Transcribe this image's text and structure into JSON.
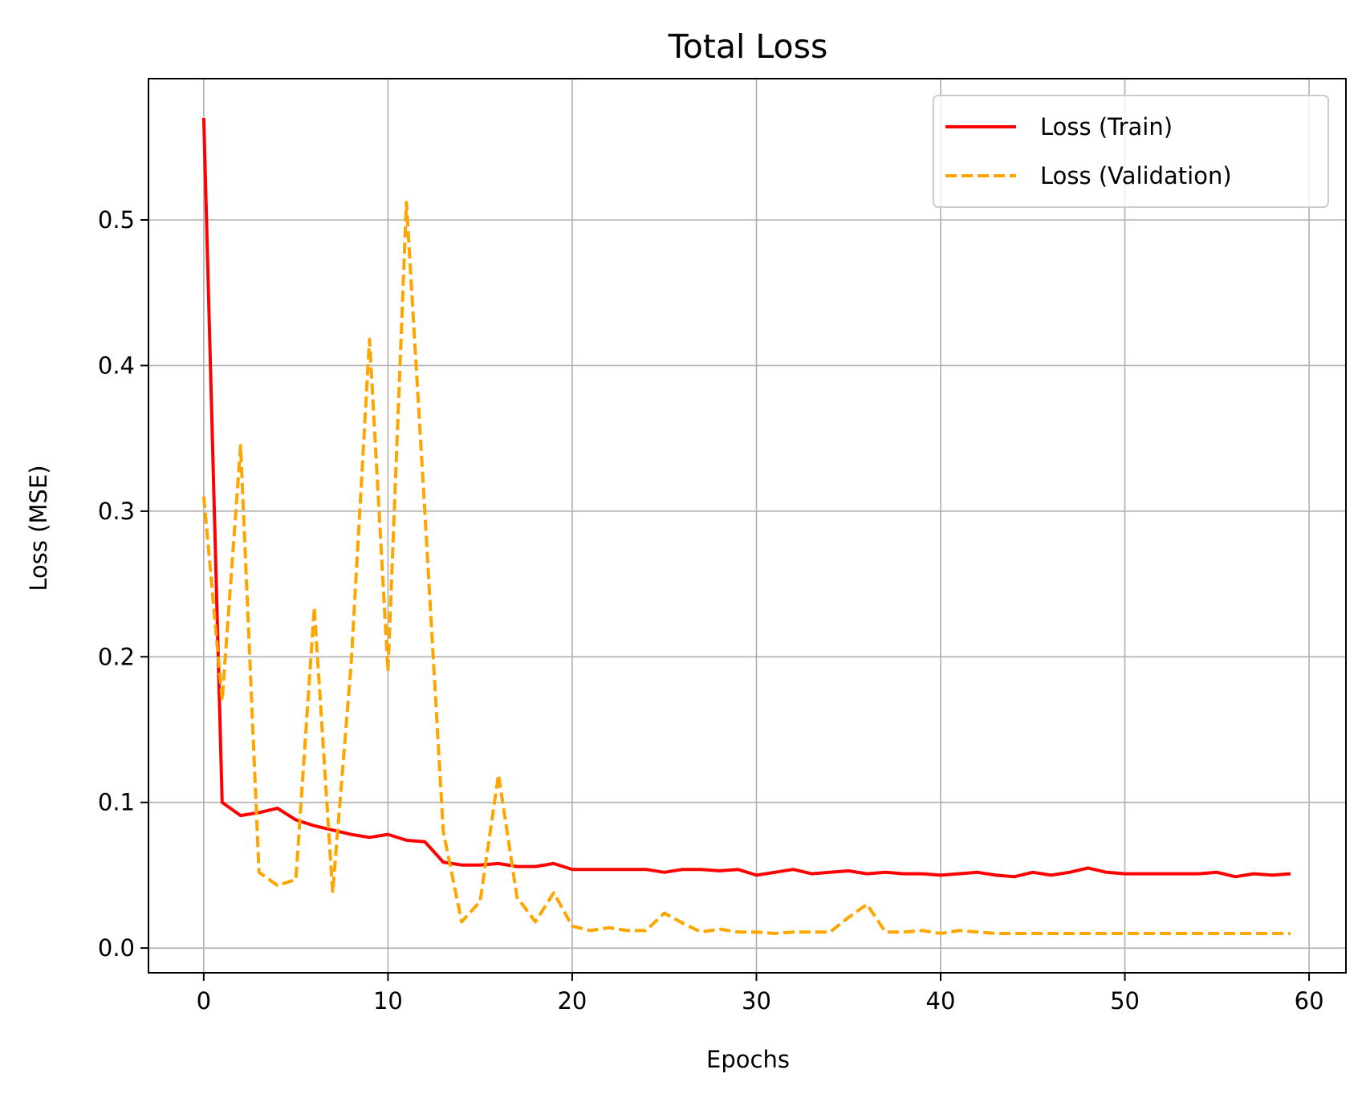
{
  "chart_data": {
    "type": "line",
    "title": "Total Loss",
    "xlabel": "Epochs",
    "ylabel": "Loss (MSE)",
    "xlim": [
      -3,
      62
    ],
    "ylim": [
      -0.017,
      0.597
    ],
    "xticks": [
      0,
      10,
      20,
      30,
      40,
      50,
      60
    ],
    "yticks": [
      0.0,
      0.1,
      0.2,
      0.3,
      0.4,
      0.5
    ],
    "xtick_labels": [
      "0",
      "10",
      "20",
      "30",
      "40",
      "50",
      "60"
    ],
    "ytick_labels": [
      "0.0",
      "0.1",
      "0.2",
      "0.3",
      "0.4",
      "0.5"
    ],
    "grid": true,
    "legend_position": "top-right",
    "series": [
      {
        "name": "Loss (Train)",
        "color": "#ff0000",
        "style": "solid",
        "x": [
          0,
          1,
          2,
          3,
          4,
          5,
          6,
          7,
          8,
          9,
          10,
          11,
          12,
          13,
          14,
          15,
          16,
          17,
          18,
          19,
          20,
          21,
          22,
          23,
          24,
          25,
          26,
          27,
          28,
          29,
          30,
          31,
          32,
          33,
          34,
          35,
          36,
          37,
          38,
          39,
          40,
          41,
          42,
          43,
          44,
          45,
          46,
          47,
          48,
          49,
          50,
          51,
          52,
          53,
          54,
          55,
          56,
          57,
          58,
          59
        ],
        "y": [
          0.57,
          0.1,
          0.091,
          0.093,
          0.096,
          0.088,
          0.084,
          0.081,
          0.078,
          0.076,
          0.078,
          0.074,
          0.073,
          0.059,
          0.057,
          0.057,
          0.058,
          0.056,
          0.056,
          0.058,
          0.054,
          0.054,
          0.054,
          0.054,
          0.054,
          0.052,
          0.054,
          0.054,
          0.053,
          0.054,
          0.05,
          0.052,
          0.054,
          0.051,
          0.052,
          0.053,
          0.051,
          0.052,
          0.051,
          0.051,
          0.05,
          0.051,
          0.052,
          0.05,
          0.049,
          0.052,
          0.05,
          0.052,
          0.055,
          0.052,
          0.051,
          0.051,
          0.051,
          0.051,
          0.051,
          0.052,
          0.049,
          0.051,
          0.05,
          0.051
        ]
      },
      {
        "name": "Loss (Validation)",
        "color": "#ffa500",
        "style": "dashed",
        "x": [
          0,
          1,
          2,
          3,
          4,
          5,
          6,
          7,
          8,
          9,
          10,
          11,
          12,
          13,
          14,
          15,
          16,
          17,
          18,
          19,
          20,
          21,
          22,
          23,
          24,
          25,
          26,
          27,
          28,
          29,
          30,
          31,
          32,
          33,
          34,
          35,
          36,
          37,
          38,
          39,
          40,
          41,
          42,
          43,
          44,
          45,
          46,
          47,
          48,
          49,
          50,
          51,
          52,
          53,
          54,
          55,
          56,
          57,
          58,
          59
        ],
        "y": [
          0.31,
          0.17,
          0.345,
          0.052,
          0.043,
          0.047,
          0.234,
          0.038,
          0.195,
          0.418,
          0.19,
          0.512,
          0.3,
          0.08,
          0.018,
          0.032,
          0.119,
          0.035,
          0.018,
          0.038,
          0.015,
          0.012,
          0.014,
          0.012,
          0.012,
          0.024,
          0.017,
          0.011,
          0.013,
          0.011,
          0.011,
          0.01,
          0.011,
          0.011,
          0.011,
          0.021,
          0.03,
          0.011,
          0.011,
          0.012,
          0.01,
          0.012,
          0.011,
          0.01,
          0.01,
          0.01,
          0.01,
          0.01,
          0.01,
          0.01,
          0.01,
          0.01,
          0.01,
          0.01,
          0.01,
          0.01,
          0.01,
          0.01,
          0.01,
          0.01
        ]
      }
    ]
  }
}
